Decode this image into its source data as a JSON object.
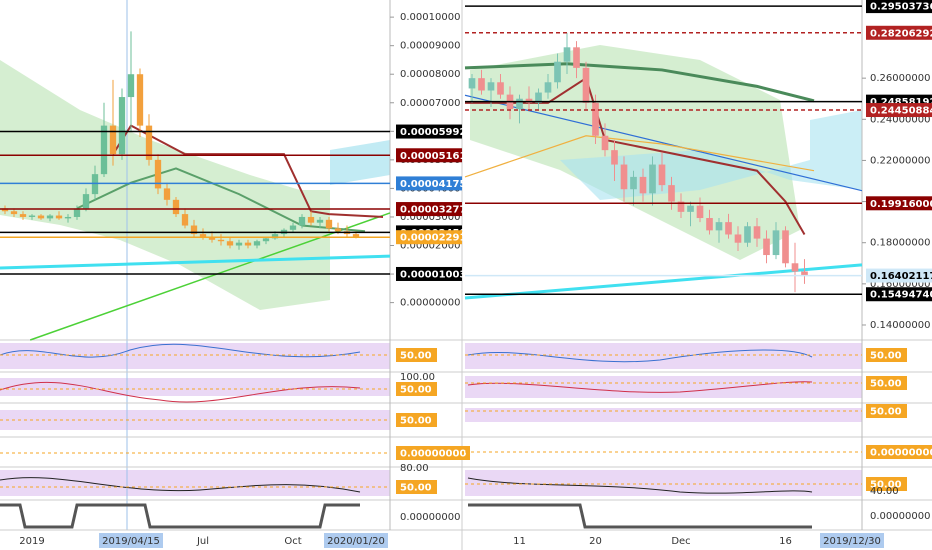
{
  "chart_data": [
    {
      "type": "candlestick",
      "up_color": "#6cbf98",
      "down_color": "#f2a03d",
      "ylim": [
        -1.31e-05,
        0.000106
      ],
      "yticks": [
        {
          "value": 0,
          "label": "0.00000000"
        },
        {
          "value": 1e-05,
          "label": "0.00001000"
        },
        {
          "value": 2e-05,
          "label": "0.00002000"
        },
        {
          "value": 3e-05,
          "label": "0.00003000"
        },
        {
          "value": 4e-05,
          "label": "0.00004000"
        },
        {
          "value": 5e-05,
          "label": "0.00005000"
        },
        {
          "value": 6e-05,
          "label": "0.00006000"
        },
        {
          "value": 7e-05,
          "label": "0.00007000"
        },
        {
          "value": 8e-05,
          "label": "0.00008000"
        },
        {
          "value": 9e-05,
          "label": "0.00009000"
        },
        {
          "value": 0.0001,
          "label": "0.00010000"
        }
      ],
      "categories": [
        null,
        null,
        null,
        "2019",
        null,
        null,
        null,
        null,
        null,
        null,
        null,
        null,
        null,
        null,
        "2019/04/15",
        null,
        null,
        null,
        null,
        null,
        null,
        null,
        "Jul",
        null,
        null,
        null,
        null,
        null,
        null,
        null,
        null,
        null,
        "Oct",
        null,
        null,
        null,
        null,
        null,
        null,
        "2020/01/20"
      ],
      "highlighted": [
        14,
        39
      ],
      "open": [
        3.3e-05,
        3.2e-05,
        3.1e-05,
        3e-05,
        3.05e-05,
        2.95e-05,
        3.05e-05,
        2.95e-05,
        3e-05,
        3.3e-05,
        3.8e-05,
        4.5e-05,
        6.2e-05,
        5.2e-05,
        7.2e-05,
        8e-05,
        6.2e-05,
        5e-05,
        4e-05,
        3.6e-05,
        3.1e-05,
        2.7e-05,
        2.4e-05,
        2.3e-05,
        2.2e-05,
        2.15e-05,
        2e-05,
        2.1e-05,
        2e-05,
        2.15e-05,
        2.25e-05,
        2.4e-05,
        2.55e-05,
        2.7e-05,
        3e-05,
        2.8e-05,
        2.9e-05,
        2.6e-05,
        2.5e-05,
        2.4e-05
      ],
      "high": [
        3.4e-05,
        3.3e-05,
        3.2e-05,
        3.1e-05,
        3.1e-05,
        3.1e-05,
        3.2e-05,
        3.1e-05,
        3.4e-05,
        4e-05,
        4.8e-05,
        7e-05,
        7.8e-05,
        7.5e-05,
        9.5e-05,
        8.2e-05,
        6.6e-05,
        5.2e-05,
        4.2e-05,
        3.7e-05,
        3.3e-05,
        2.9e-05,
        2.6e-05,
        2.5e-05,
        2.4e-05,
        2.3e-05,
        2.2e-05,
        2.2e-05,
        2.2e-05,
        2.3e-05,
        2.5e-05,
        2.6e-05,
        2.8e-05,
        3.1e-05,
        3.2e-05,
        3e-05,
        3e-05,
        2.8e-05,
        2.7e-05,
        2.5e-05
      ],
      "low": [
        3.1e-05,
        3e-05,
        2.9e-05,
        2.9e-05,
        2.9e-05,
        2.85e-05,
        2.9e-05,
        2.8e-05,
        2.9e-05,
        3.2e-05,
        3.6e-05,
        4.4e-05,
        4.8e-05,
        5e-05,
        6e-05,
        5.8e-05,
        4.8e-05,
        3.8e-05,
        3.4e-05,
        3e-05,
        2.6e-05,
        2.3e-05,
        2.2e-05,
        2.1e-05,
        2e-05,
        1.9e-05,
        1.85e-05,
        1.9e-05,
        1.9e-05,
        2.05e-05,
        2.2e-05,
        2.3e-05,
        2.45e-05,
        2.6e-05,
        2.7e-05,
        2.6e-05,
        2.5e-05,
        2.4e-05,
        2.3e-05,
        2.25e-05
      ],
      "close": [
        3.2e-05,
        3.1e-05,
        3e-05,
        3.05e-05,
        2.95e-05,
        3.05e-05,
        2.95e-05,
        3e-05,
        3.3e-05,
        3.8e-05,
        4.5e-05,
        6.2e-05,
        5.2e-05,
        7.2e-05,
        8e-05,
        6.2e-05,
        5e-05,
        4e-05,
        3.6e-05,
        3.1e-05,
        2.7e-05,
        2.4e-05,
        2.3e-05,
        2.2e-05,
        2.15e-05,
        2e-05,
        2.1e-05,
        2e-05,
        2.15e-05,
        2.25e-05,
        2.4e-05,
        2.55e-05,
        2.7e-05,
        3e-05,
        2.8e-05,
        2.9e-05,
        2.6e-05,
        2.5e-05,
        2.4e-05,
        2.3e-05
      ],
      "price_lines": [
        {
          "value": 5.992e-05,
          "label": "0.00005992",
          "color": "#000000"
        },
        {
          "value": 5.161e-05,
          "label": "0.00005161",
          "color": "#8b0000"
        },
        {
          "value": 4.175e-05,
          "label": "0.00004175",
          "color": "#2f7fd6"
        },
        {
          "value": 3.277e-05,
          "label": "0.00003277",
          "color": "#8b0000"
        },
        {
          "value": 2.459e-05,
          "label": "0.00002459",
          "color": "#000000"
        },
        {
          "value": 2.291e-05,
          "label": "0.00002291",
          "color": "#f5a623"
        },
        {
          "value": 1.003e-05,
          "label": "0.00001003",
          "color": "#000000"
        }
      ],
      "lines": [
        {
          "color": "#4cd137",
          "width": 1.5,
          "x": [
            2.8,
            42.8
          ],
          "y": [
            -1.31e-05,
            3.14e-05
          ]
        },
        {
          "color": "#40e0f0",
          "width": 3,
          "x": [
            -0.6,
            42.8
          ],
          "y": [
            1.21e-05,
            1.63e-05
          ]
        },
        {
          "color": "#a0302f",
          "width": 2,
          "x": [
            12,
            14,
            20,
            31,
            34,
            36,
            42
          ],
          "y": [
            5.2e-05,
            6.2e-05,
            5.2e-05,
            5.2e-05,
            3.2e-05,
            3.1e-05,
            3e-05
          ]
        },
        {
          "color": "#5aa06a",
          "width": 2,
          "x": [
            8,
            14,
            19,
            26,
            33,
            40
          ],
          "y": [
            3.3e-05,
            4.2e-05,
            4.7e-05,
            3.8e-05,
            2.7e-05,
            2.5e-05
          ]
        }
      ],
      "indicator_labels": [
        {
          "label": "50.00",
          "style": "box"
        },
        {
          "label": "100.00",
          "style": "plain"
        },
        {
          "label": "50.00",
          "style": "box"
        },
        {
          "label": "50.00",
          "style": "box"
        },
        {
          "label": "0.00000000",
          "style": "box"
        },
        {
          "label": "80.00",
          "style": "plain"
        },
        {
          "label": "50.00",
          "style": "box"
        },
        {
          "label": "0.00000000",
          "style": "plain"
        }
      ]
    },
    {
      "type": "candlestick",
      "up_color": "#7cc4b4",
      "down_color": "#f08f8f",
      "ylim": [
        0.1327,
        0.298
      ],
      "yticks": [
        {
          "value": 0.14,
          "label": "0.14000000"
        },
        {
          "value": 0.16,
          "label": "0.16000000"
        },
        {
          "value": 0.18,
          "label": "0.18000000"
        },
        {
          "value": 0.2,
          "label": "0.20000000"
        },
        {
          "value": 0.22,
          "label": "0.22000000"
        },
        {
          "value": 0.24,
          "label": "0.24000000"
        },
        {
          "value": 0.26,
          "label": "0.26000000"
        }
      ],
      "categories": [
        null,
        null,
        null,
        null,
        null,
        "11",
        null,
        null,
        null,
        null,
        null,
        null,
        null,
        "20",
        null,
        null,
        null,
        null,
        null,
        null,
        null,
        null,
        "Dec",
        null,
        null,
        null,
        null,
        null,
        null,
        null,
        null,
        null,
        null,
        "16",
        null,
        null,
        null,
        null,
        null,
        null,
        "2019/12/30"
      ],
      "highlighted": [
        40
      ],
      "open": [
        0.255,
        0.26,
        0.254,
        0.258,
        0.252,
        0.245,
        0.25,
        0.248,
        0.253,
        0.258,
        0.268,
        0.275,
        0.265,
        0.248,
        0.232,
        0.225,
        0.218,
        0.206,
        0.212,
        0.204,
        0.218,
        0.208,
        0.2,
        0.195,
        0.198,
        0.192,
        0.186,
        0.19,
        0.184,
        0.18,
        0.188,
        0.182,
        0.174,
        0.186,
        0.17,
        0.166,
        null,
        null,
        null,
        null,
        null
      ],
      "high": [
        0.262,
        0.264,
        0.26,
        0.262,
        0.256,
        0.252,
        0.256,
        0.255,
        0.262,
        0.272,
        0.282,
        0.278,
        0.268,
        0.252,
        0.238,
        0.23,
        0.222,
        0.215,
        0.216,
        0.222,
        0.224,
        0.212,
        0.204,
        0.2,
        0.202,
        0.196,
        0.192,
        0.194,
        0.188,
        0.19,
        0.192,
        0.186,
        0.19,
        0.188,
        0.18,
        0.172,
        null,
        null,
        null,
        null,
        null
      ],
      "low": [
        0.248,
        0.252,
        0.246,
        0.25,
        0.24,
        0.238,
        0.244,
        0.245,
        0.25,
        0.255,
        0.262,
        0.26,
        0.245,
        0.228,
        0.222,
        0.21,
        0.2,
        0.198,
        0.2,
        0.198,
        0.205,
        0.196,
        0.192,
        0.188,
        0.19,
        0.184,
        0.18,
        0.182,
        0.176,
        0.178,
        0.178,
        0.17,
        0.172,
        0.168,
        0.156,
        0.16,
        null,
        null,
        null,
        null,
        null
      ],
      "close": [
        0.26,
        0.254,
        0.258,
        0.252,
        0.245,
        0.25,
        0.248,
        0.253,
        0.258,
        0.268,
        0.275,
        0.265,
        0.248,
        0.232,
        0.225,
        0.218,
        0.206,
        0.212,
        0.204,
        0.218,
        0.208,
        0.2,
        0.195,
        0.198,
        0.192,
        0.186,
        0.19,
        0.184,
        0.18,
        0.188,
        0.182,
        0.174,
        0.186,
        0.17,
        0.166,
        0.164,
        null,
        null,
        null,
        null,
        null
      ],
      "price_lines": [
        {
          "value": 0.29503736,
          "label": "0.29503736",
          "color": "#000000"
        },
        {
          "value": 0.28206292,
          "label": "0.28206292",
          "color": "#b22222",
          "dashed": true
        },
        {
          "value": 0.24858192,
          "label": "0.24858192",
          "color": "#000000"
        },
        {
          "value": 0.24450884,
          "label": "0.24450884",
          "color": "#b22222",
          "dashed": true
        },
        {
          "value": 0.19916,
          "label": "0.19916000",
          "color": "#8b0000"
        },
        {
          "value": 0.16402117,
          "label": "0.16402117",
          "color": "#cfe8f7"
        },
        {
          "value": 0.1549474,
          "label": "0.15494740",
          "color": "#000000"
        }
      ],
      "lines": [
        {
          "color": "#40e0f0",
          "width": 3,
          "x": [
            -0.74,
            41.05
          ],
          "y": [
            0.1531,
            0.1692
          ]
        },
        {
          "color": "#2f6fd6",
          "width": 1.2,
          "x": [
            -0.74,
            41.05
          ],
          "y": [
            0.2517,
            0.2053
          ]
        },
        {
          "color": "#4a8a5a",
          "width": 3,
          "x": [
            -0.74,
            10,
            20,
            30,
            36
          ],
          "y": [
            0.265,
            0.267,
            0.264,
            0.256,
            0.249
          ]
        },
        {
          "color": "#a03030",
          "width": 2,
          "x": [
            -0.74,
            8,
            12,
            14,
            30,
            33,
            35
          ],
          "y": [
            0.248,
            0.248,
            0.26,
            0.23,
            0.215,
            0.2,
            0.184
          ]
        },
        {
          "color": "#f0b040",
          "width": 1.2,
          "x": [
            -0.74,
            12,
            20,
            36
          ],
          "y": [
            0.212,
            0.232,
            0.228,
            0.215
          ]
        }
      ],
      "indicator_labels": [
        {
          "label": "50.00",
          "style": "box"
        },
        {
          "label": "50.00",
          "style": "box"
        },
        {
          "label": "50.00",
          "style": "box"
        },
        {
          "label": "0.00000000",
          "style": "box"
        },
        {
          "label": "50.00",
          "style": "box"
        },
        {
          "label": "40.00",
          "style": "plain"
        },
        {
          "label": "0.00000000",
          "style": "plain"
        }
      ]
    }
  ]
}
